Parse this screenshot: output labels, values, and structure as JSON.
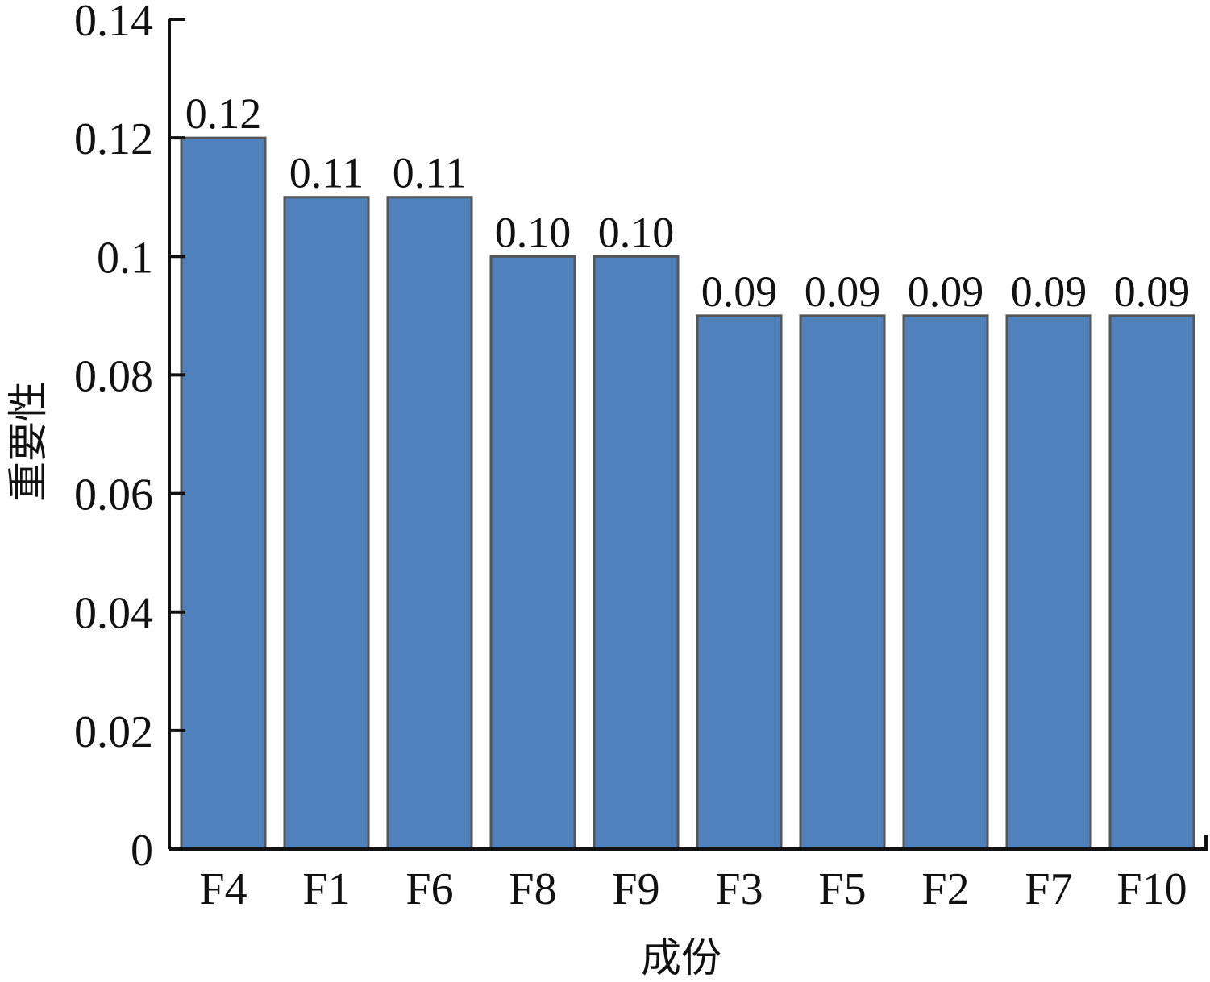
{
  "chart_data": {
    "type": "bar",
    "categories": [
      "F4",
      "F1",
      "F6",
      "F8",
      "F9",
      "F3",
      "F5",
      "F2",
      "F7",
      "F10"
    ],
    "values": [
      0.12,
      0.11,
      0.11,
      0.1,
      0.1,
      0.09,
      0.09,
      0.09,
      0.09,
      0.09
    ],
    "data_labels": [
      "0.12",
      "0.11",
      "0.11",
      "0.10",
      "0.10",
      "0.09",
      "0.09",
      "0.09",
      "0.09",
      "0.09"
    ],
    "xlabel": "成份",
    "ylabel": "重要性",
    "ylim": [
      0,
      0.14
    ],
    "yticks": [
      "0",
      "0.02",
      "0.04",
      "0.06",
      "0.08",
      "0.1",
      "0.12",
      "0.14"
    ],
    "bar_color": "#4f81bd",
    "bar_edge_color": "#555555",
    "grid": false,
    "legend": "none"
  }
}
